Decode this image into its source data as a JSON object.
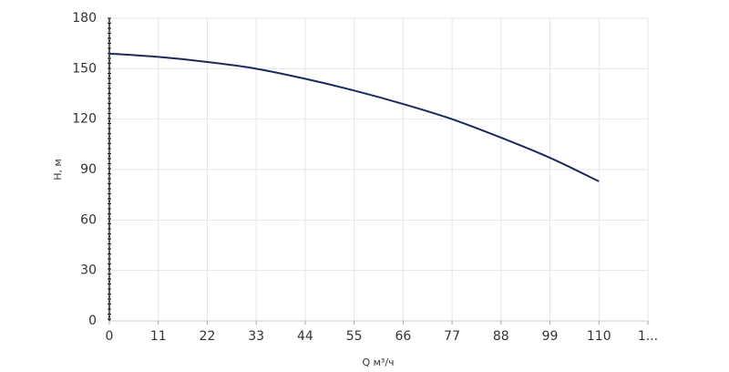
{
  "chart_data": {
    "type": "line",
    "xlabel": "Q м³/ч",
    "ylabel": "H, м",
    "x": [
      0,
      11,
      22,
      33,
      44,
      55,
      66,
      77,
      88,
      99,
      110
    ],
    "series": [
      {
        "name": "H",
        "color": "#1b2a5c",
        "values": [
          159,
          157,
          154,
          150,
          144,
          137,
          129,
          120,
          109,
          97,
          83
        ]
      }
    ],
    "xlim": [
      0,
      121
    ],
    "xticks": [
      0,
      11,
      22,
      33,
      44,
      55,
      66,
      77,
      88,
      99,
      110,
      {
        "value": 121,
        "label": "1..."
      }
    ],
    "ylim": [
      0,
      180
    ],
    "yticks": [
      0,
      30,
      60,
      90,
      120,
      150,
      180
    ],
    "grid": true
  }
}
